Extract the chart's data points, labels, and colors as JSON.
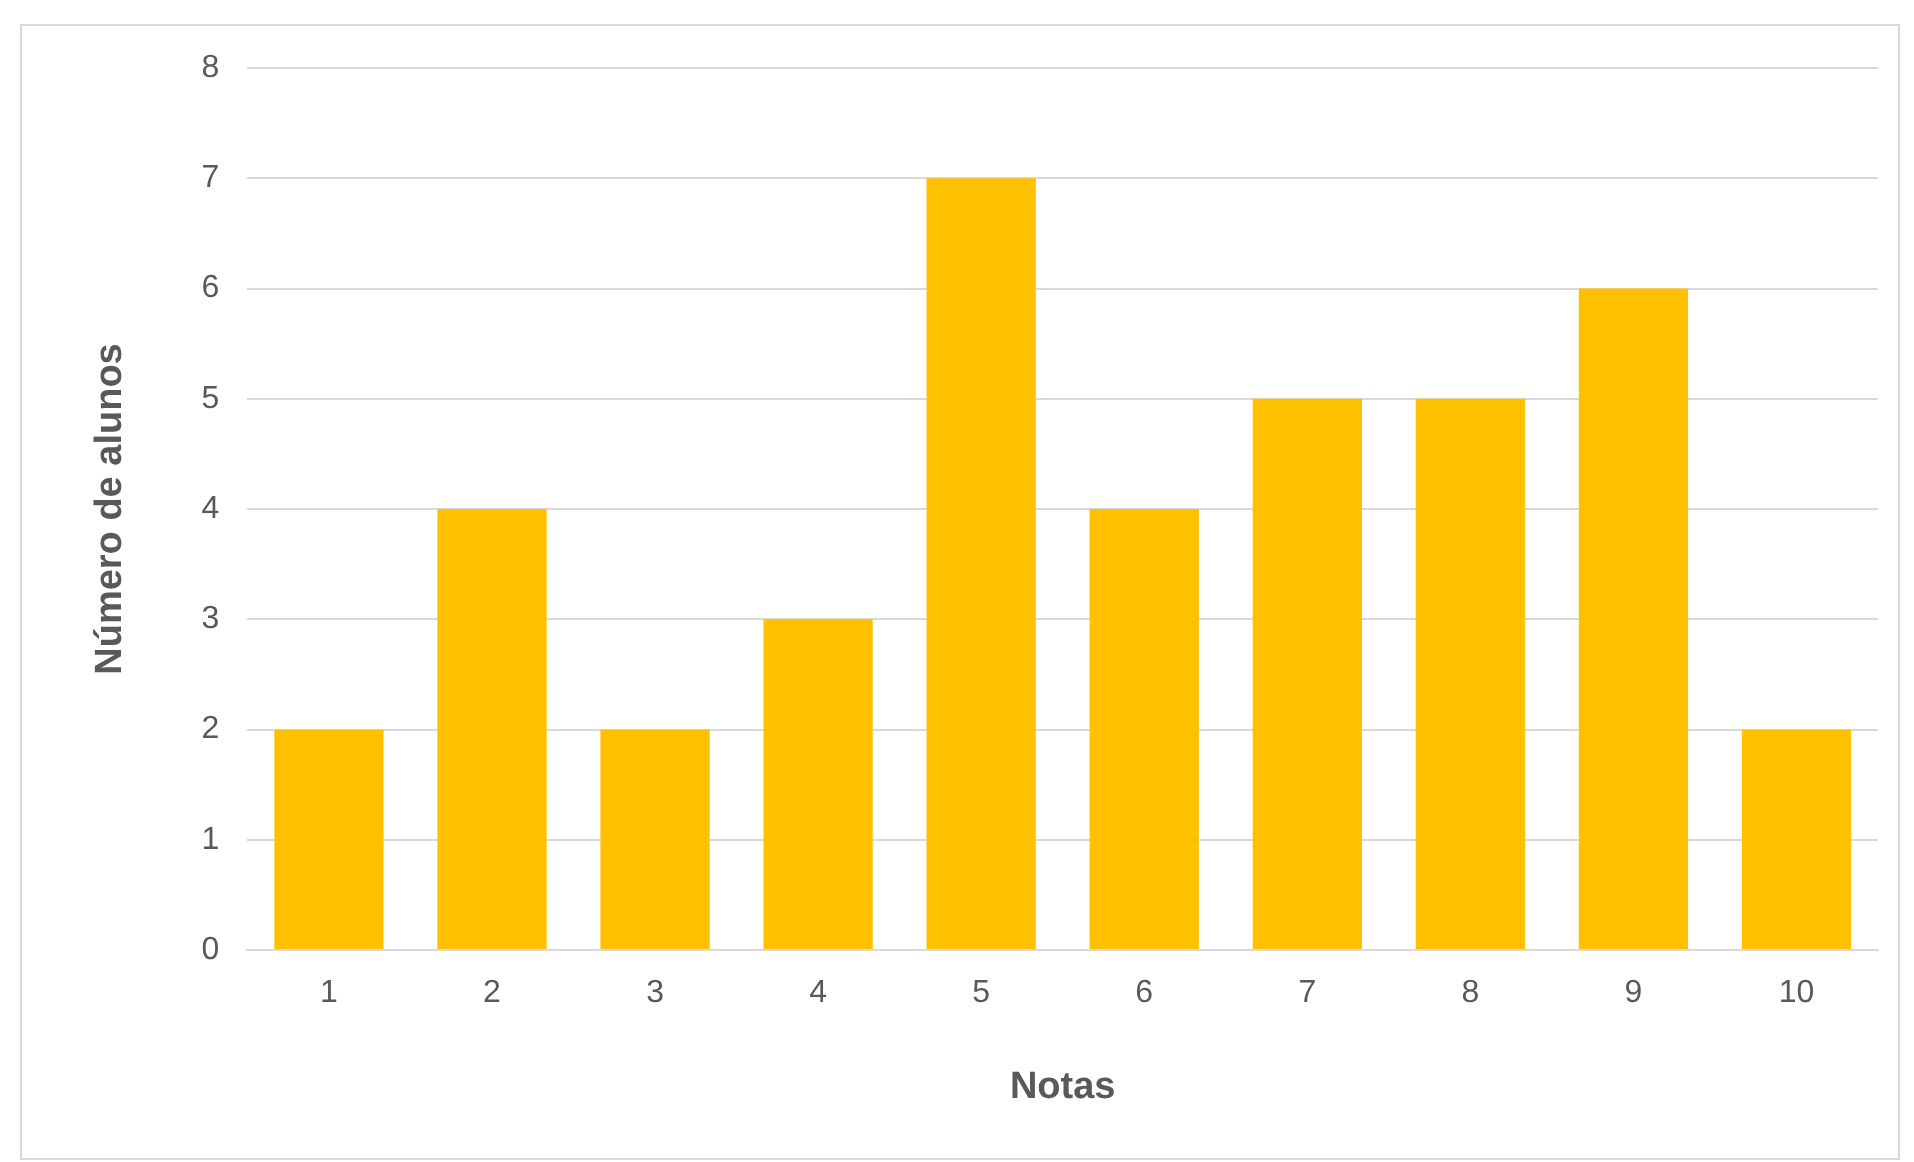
{
  "chart_data": {
    "type": "bar",
    "xlabel": "Notas",
    "ylabel": "Número de alunos",
    "categories": [
      "1",
      "2",
      "3",
      "4",
      "5",
      "6",
      "7",
      "8",
      "9",
      "10"
    ],
    "values": [
      2,
      4,
      2,
      3,
      7,
      4,
      5,
      5,
      6,
      2
    ],
    "color": "#ffc000",
    "ylim": [
      0,
      8
    ],
    "yticks": [
      0,
      1,
      2,
      3,
      4,
      5,
      6,
      7,
      8
    ],
    "grid": "y",
    "legend": false
  }
}
